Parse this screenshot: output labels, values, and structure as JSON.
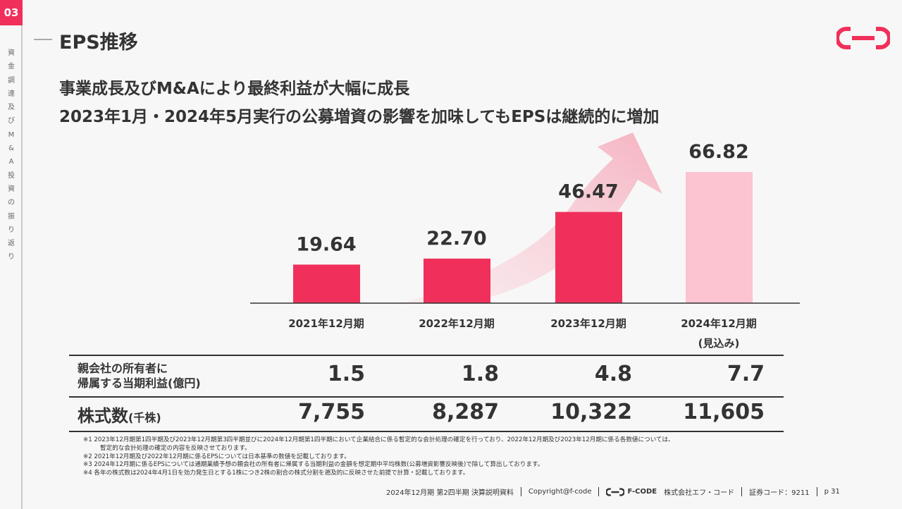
{
  "section": {
    "number": "03",
    "label": [
      "資",
      "金",
      "調",
      "達",
      "及",
      "び",
      "M",
      "&",
      "A",
      "投",
      "資",
      "の",
      "振",
      "り",
      "返",
      "り"
    ]
  },
  "title": "EPS推移",
  "headline": [
    "事業成長及びM&Aにより最終利益が大幅に成長",
    "2023年1月・2024年5月実行の公募増資の影響を加味してもEPSは継続的に増加"
  ],
  "colors": {
    "accent": "#f0305a",
    "forecast": "#fbc4d0",
    "arrow": "#f7c2cd"
  },
  "chart_data": {
    "type": "bar",
    "categories": [
      "2021年12月期",
      "2022年12月期",
      "2023年12月期",
      "2024年12月期"
    ],
    "category_sub": [
      "",
      "",
      "",
      "(見込み)"
    ],
    "values": [
      19.64,
      22.7,
      46.47,
      66.82
    ],
    "labels": [
      "19.64",
      "22.70",
      "46.47",
      "66.82"
    ],
    "forecast_index": 3,
    "ylim": [
      0,
      70
    ],
    "grid": false
  },
  "table": {
    "rows": [
      {
        "label": [
          "親会社の所有者に",
          "帰属する当期利益(億円)"
        ],
        "values": [
          "1.5",
          "1.8",
          "4.8",
          "7.7"
        ]
      },
      {
        "label_main": "株式数",
        "label_unit": "(千株)",
        "values": [
          "7,755",
          "8,287",
          "10,322",
          "11,605"
        ]
      }
    ]
  },
  "notes": [
    "※1  2023年12月期第1四半期及び2023年12月期第3四半期並びに2024年12月期第1四半期において企業結合に係る暫定的な会計処理の確定を行っており、2022年12月期及び2023年12月期に係る各数値については、",
    "暫定的な会計処理の確定の内容を反映させております。",
    "※2  2021年12月期及び2022年12月期に係るEPSについては日本基準の数値を記載しております。",
    "※3  2024年12月期に係るEPSについては通期業績予想の親会社の所有者に帰属する当期利益の金額を想定期中平均株数(公募増資影響反映後)で除して算出しております。",
    "※4  各年の株式数は2024年4月1日を効力発生日とする1株につき2株の割合の株式分割を遡及的に反映させた前提で計算・記載しております。"
  ],
  "footer": {
    "doc": "2024年12月期 第2四半期 決算説明資料",
    "copyright": "Copyright@f-code",
    "brand": "F-CODE",
    "company": "株式会社エフ・コード",
    "code": "証券コード：9211",
    "page": "p  31"
  }
}
